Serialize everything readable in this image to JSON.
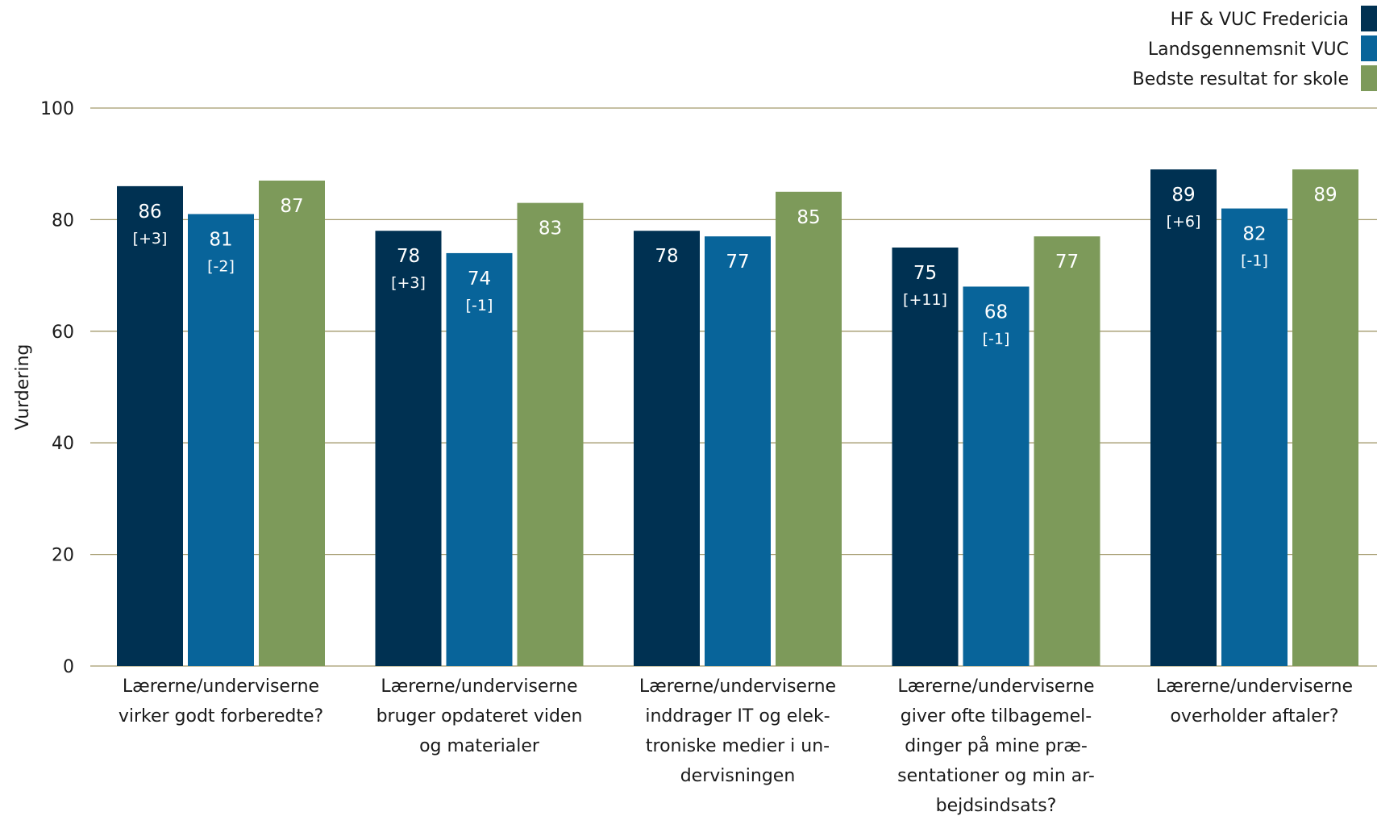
{
  "chart_data": {
    "type": "bar",
    "ylabel": "Vurdering",
    "ylim": [
      0,
      100
    ],
    "yticks": [
      0,
      20,
      40,
      60,
      80,
      100
    ],
    "grid": true,
    "legend_position": "top-right",
    "categories": [
      [
        "Lærerne/underviserne",
        "virker godt forberedte?"
      ],
      [
        "Lærerne/underviserne",
        "bruger opdateret viden",
        "og materialer"
      ],
      [
        "Lærerne/underviserne",
        "inddrager IT og elek-",
        "troniske medier i un-",
        "dervisningen"
      ],
      [
        "Lærerne/underviserne",
        "giver ofte tilbagemel-",
        "dinger på mine præ-",
        "sentationer og min ar-",
        "bejdsindsats?"
      ],
      [
        "Lærerne/underviserne",
        "overholder aftaler?"
      ]
    ],
    "series": [
      {
        "name": "HF & VUC Fredericia",
        "color": "#003152",
        "values": [
          86,
          78,
          78,
          75,
          89
        ],
        "deltas": [
          "[+3]",
          "[+3]",
          "",
          "[+11]",
          "[+6]"
        ]
      },
      {
        "name": "Landsgennemsnit VUC",
        "color": "#08649a",
        "values": [
          81,
          74,
          77,
          68,
          82
        ],
        "deltas": [
          "[-2]",
          "[-1]",
          "",
          "[-1]",
          "[-1]"
        ]
      },
      {
        "name": "Bedste resultat for skole",
        "color": "#7d9a5a",
        "values": [
          87,
          83,
          85,
          77,
          89
        ],
        "deltas": [
          "",
          "",
          "",
          "",
          ""
        ]
      }
    ]
  }
}
